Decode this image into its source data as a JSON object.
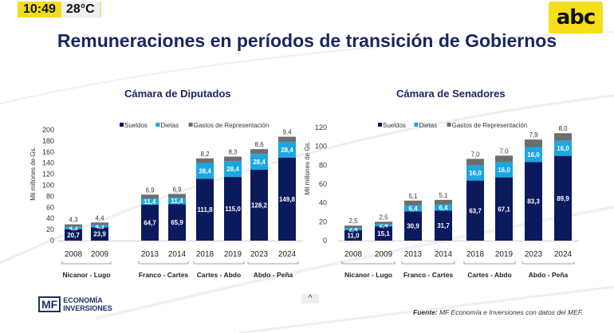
{
  "status_bar": {
    "time": "10:49",
    "temperature": "28°C"
  },
  "brand": {
    "logo_text": "abc",
    "logo_bg": "#f6df1a"
  },
  "title": "Remuneraciones en períodos de transición de Gobiernos",
  "footer": {
    "logo_mark": "MF",
    "logo_line1": "ECONOMÍA",
    "logo_line2": "INVERSIONES",
    "source_label": "Fuente:",
    "source_text": " MF Economía e Inversiones con datos del MEF.",
    "scroll_up_glyph": "^"
  },
  "colors": {
    "sueldos": "#0b1a5c",
    "dietas": "#1ba7e1",
    "gastos": "#6d6d6d",
    "title": "#1a2660"
  },
  "chart_data": [
    {
      "type": "bar",
      "stacked": true,
      "title": "Cámara de Diputados",
      "ylabel": "Mil millones de Gs.",
      "xlabel": "",
      "ylim": [
        0,
        200
      ],
      "yticks": [
        0,
        20,
        40,
        60,
        80,
        100,
        120,
        140,
        160,
        180,
        200
      ],
      "categories": [
        "2008",
        "2009",
        "2013",
        "2014",
        "2018",
        "2019",
        "2023",
        "2024"
      ],
      "groups": [
        {
          "label": "Nicanor - Lugo",
          "years": [
            "2008",
            "2009"
          ]
        },
        {
          "label": "Franco - Cartes",
          "years": [
            "2013",
            "2014"
          ]
        },
        {
          "label": "Cartes - Abdo",
          "years": [
            "2018",
            "2019"
          ]
        },
        {
          "label": "Abdo - Peña",
          "years": [
            "2023",
            "2024"
          ]
        }
      ],
      "legend": [
        "Sueldos",
        "Dietas",
        "Gastos de Representación"
      ],
      "legend_position": "top",
      "series": [
        {
          "name": "Sueldos",
          "values": [
            20.7,
            23.9,
            64.7,
            65.9,
            111.8,
            115.0,
            128.2,
            149.8
          ],
          "labels": [
            "20,7",
            "23,9",
            "64,7",
            "65,9",
            "111,8",
            "115,0",
            "128,2",
            "149,8"
          ]
        },
        {
          "name": "Dietas",
          "values": [
            4.3,
            4.3,
            11.4,
            11.4,
            28.4,
            28.4,
            28.4,
            28.4
          ],
          "labels": [
            "4,3",
            "4,3",
            "11,4",
            "11,4",
            "28,4",
            "28,4",
            "28,4",
            "28,4"
          ]
        },
        {
          "name": "Gastos de Representación",
          "values": [
            4.3,
            4.4,
            6.9,
            6.9,
            8.2,
            8.3,
            8.6,
            9.4
          ],
          "labels": [
            "4,3",
            "4,4",
            "6,9",
            "6,9",
            "8,2",
            "8,3",
            "8,6",
            "9,4"
          ]
        }
      ]
    },
    {
      "type": "bar",
      "stacked": true,
      "title": "Cámara de Senadores",
      "ylabel": "Mil millones de Gs.",
      "xlabel": "",
      "ylim": [
        0,
        120
      ],
      "yticks": [
        0,
        20,
        40,
        60,
        80,
        100,
        120
      ],
      "categories": [
        "2008",
        "2009",
        "2013",
        "2014",
        "2018",
        "2019",
        "2023",
        "2024"
      ],
      "groups": [
        {
          "label": "Nicanor - Lugo",
          "years": [
            "2008",
            "2009"
          ]
        },
        {
          "label": "Franco - Cartes",
          "years": [
            "2013",
            "2014"
          ]
        },
        {
          "label": "Cartes - Abdo",
          "years": [
            "2018",
            "2019"
          ]
        },
        {
          "label": "Abdo - Peña",
          "years": [
            "2023",
            "2024"
          ]
        }
      ],
      "legend": [
        "Sueldos",
        "Dietas",
        "Gastos de Representación"
      ],
      "legend_position": "top",
      "series": [
        {
          "name": "Sueldos",
          "values": [
            11.0,
            15.1,
            30.9,
            31.7,
            63.7,
            67.1,
            83.3,
            89.9
          ],
          "labels": [
            "11,0",
            "15,1",
            "30,9",
            "31,7",
            "63,7",
            "67,1",
            "83,3",
            "89,9"
          ]
        },
        {
          "name": "Dietas",
          "values": [
            2.4,
            2.4,
            6.4,
            6.4,
            16.0,
            16.0,
            16.0,
            16.0
          ],
          "labels": [
            "2,4",
            "2,4",
            "6,4",
            "6,4",
            "16,0",
            "16,0",
            "16,0",
            "16,0"
          ]
        },
        {
          "name": "Gastos de Representación",
          "values": [
            2.5,
            2.5,
            5.1,
            5.1,
            7.0,
            7.0,
            7.9,
            8.0
          ],
          "labels": [
            "2,5",
            "2,5",
            "5,1",
            "5,1",
            "7,0",
            "7,0",
            "7,9",
            "8,0"
          ]
        }
      ]
    }
  ]
}
